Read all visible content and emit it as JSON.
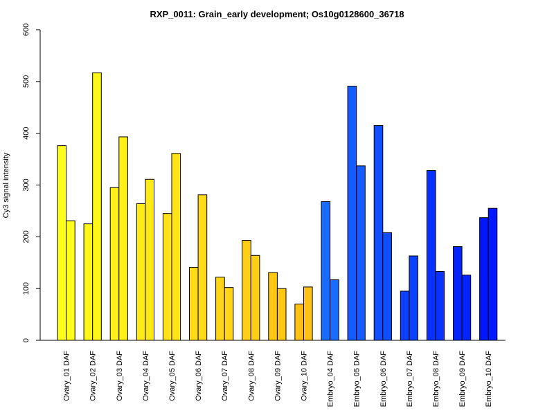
{
  "chart_data": {
    "type": "bar",
    "title": "RXP_0011: Grain_early development; Os10g0128600_36718",
    "ylabel": "Cy3 signal intensity",
    "xlabel": "",
    "ylim": [
      0,
      600
    ],
    "yticks": [
      0,
      100,
      200,
      300,
      400,
      500,
      600
    ],
    "grid": false,
    "legend": "none",
    "categories": [
      "Ovary_01 DAF",
      "Ovary_02 DAF",
      "Ovary_03 DAF",
      "Ovary_04 DAF",
      "Ovary_05 DAF",
      "Ovary_06 DAF",
      "Ovary_07 DAF",
      "Ovary_08 DAF",
      "Ovary_09 DAF",
      "Ovary_10 DAF",
      "Embryo_04 DAF",
      "Embryo_05 DAF",
      "Embryo_06 DAF",
      "Embryo_07 DAF",
      "Embryo_08 DAF",
      "Embryo_09 DAF",
      "Embryo_10 DAF"
    ],
    "colors": [
      "#FFFF1A",
      "#FFF719",
      "#FFF019",
      "#FFEA18",
      "#FFE318",
      "#FFDC17",
      "#FFD516",
      "#FFCE16",
      "#FFC815",
      "#FFC114",
      "#1A6BFF",
      "#145CFF",
      "#104EFF",
      "#0C40FF",
      "#0832FF",
      "#0424FF",
      "#0018FF"
    ],
    "series": [
      {
        "values": [
          376,
          225,
          295,
          264,
          245,
          141,
          122,
          193,
          131,
          70,
          268,
          491,
          415,
          95,
          328,
          181,
          237
        ]
      },
      {
        "values": [
          231,
          517,
          393,
          311,
          361,
          281,
          102,
          164,
          100,
          103,
          117,
          337,
          208,
          163,
          133,
          126,
          255
        ]
      }
    ]
  }
}
